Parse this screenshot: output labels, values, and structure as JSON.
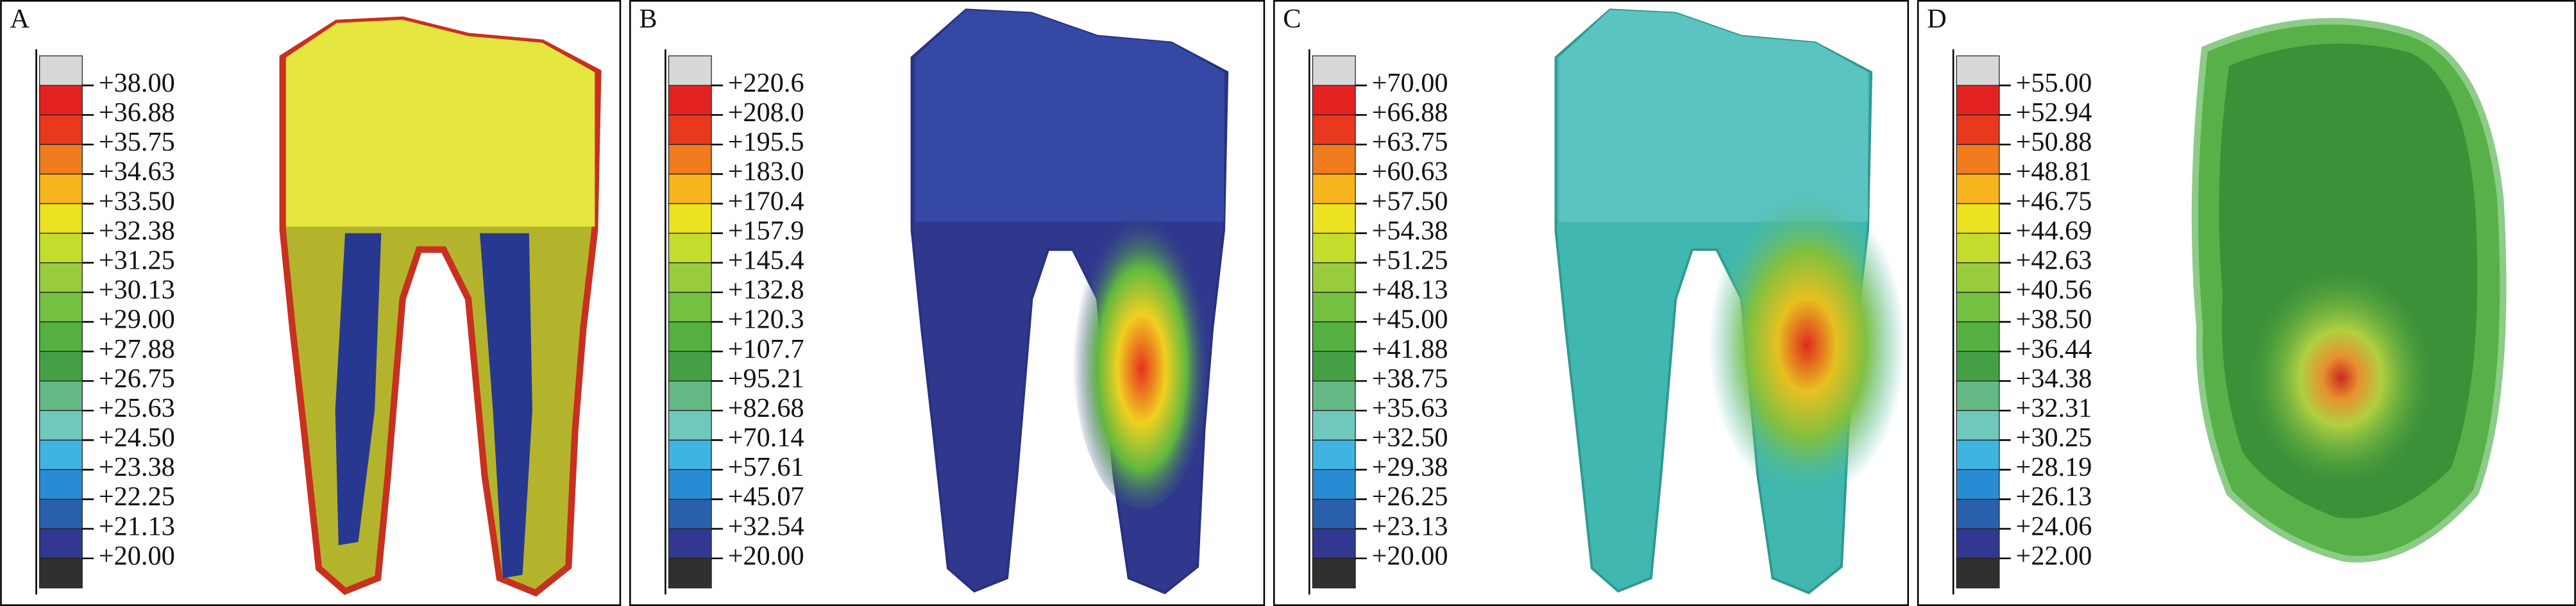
{
  "panels": [
    {
      "label": "A",
      "scale": [
        "+38.00",
        "+36.88",
        "+35.75",
        "+34.63",
        "+33.50",
        "+32.38",
        "+31.25",
        "+30.13",
        "+29.00",
        "+27.88",
        "+26.75",
        "+25.63",
        "+24.50",
        "+23.38",
        "+22.25",
        "+21.13",
        "+20.00"
      ]
    },
    {
      "label": "B",
      "scale": [
        "+220.6",
        "+208.0",
        "+195.5",
        "+183.0",
        "+170.4",
        "+157.9",
        "+145.4",
        "+132.8",
        "+120.3",
        "+107.7",
        "+95.21",
        "+82.68",
        "+70.14",
        "+57.61",
        "+45.07",
        "+32.54",
        "+20.00"
      ]
    },
    {
      "label": "C",
      "scale": [
        "+70.00",
        "+66.88",
        "+63.75",
        "+60.63",
        "+57.50",
        "+54.38",
        "+51.25",
        "+48.13",
        "+45.00",
        "+41.88",
        "+38.75",
        "+35.63",
        "+32.50",
        "+29.38",
        "+26.25",
        "+23.13",
        "+20.00"
      ]
    },
    {
      "label": "D",
      "scale": [
        "+55.00",
        "+52.94",
        "+50.88",
        "+48.81",
        "+46.75",
        "+44.69",
        "+42.63",
        "+40.56",
        "+38.50",
        "+36.44",
        "+34.38",
        "+32.31",
        "+30.25",
        "+28.19",
        "+26.13",
        "+24.06",
        "+22.00"
      ]
    }
  ],
  "scale_colors": [
    "#d8d8d8",
    "#e42222",
    "#e8381e",
    "#f07c1e",
    "#f8b41c",
    "#ece220",
    "#c4dc2c",
    "#98cc3c",
    "#74c040",
    "#54b040",
    "#44a044",
    "#64b884",
    "#70c8bc",
    "#40b4e0",
    "#288cd4",
    "#2860ac",
    "#303890",
    "#303030"
  ]
}
